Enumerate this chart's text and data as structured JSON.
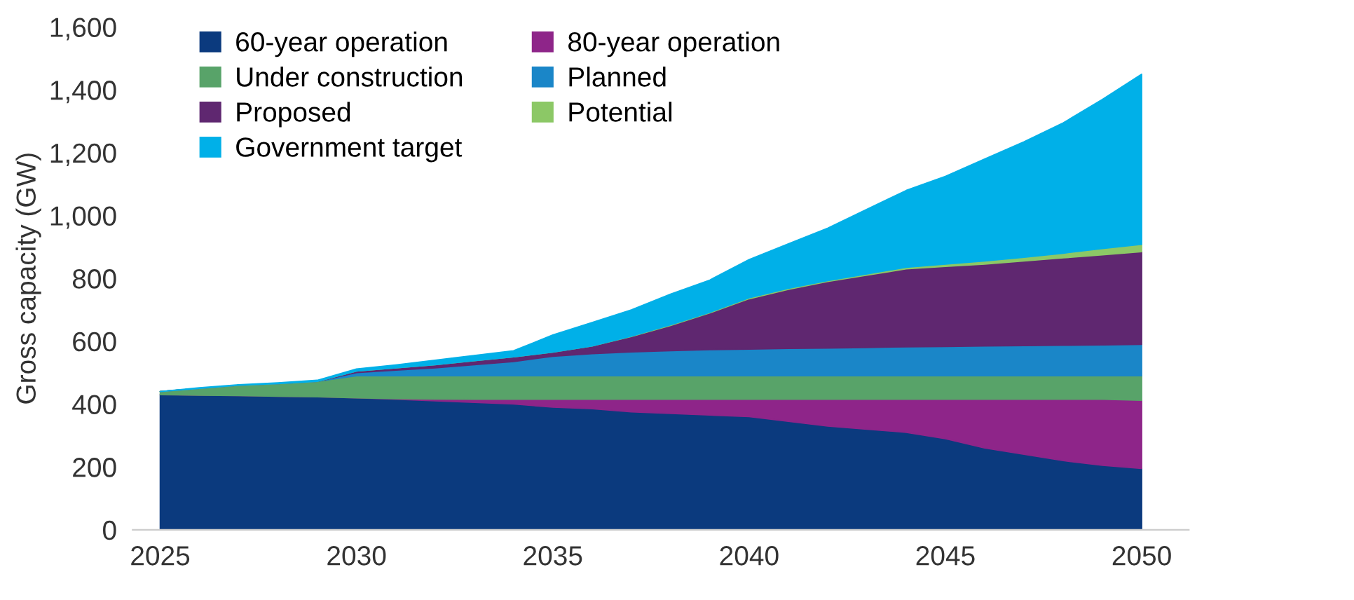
{
  "chart_data": {
    "type": "area",
    "stacked": true,
    "ylabel": "Gross capacity (GW)",
    "x": [
      2025,
      2026,
      2027,
      2028,
      2029,
      2030,
      2031,
      2032,
      2033,
      2034,
      2035,
      2036,
      2037,
      2038,
      2039,
      2040,
      2041,
      2042,
      2043,
      2044,
      2045,
      2046,
      2047,
      2048,
      2049,
      2050
    ],
    "series": [
      {
        "name": "60-year operation",
        "color": "#0b3a7e",
        "values": [
          430,
          428,
          427,
          425,
          423,
          420,
          415,
          410,
          405,
          400,
          390,
          385,
          375,
          370,
          365,
          360,
          345,
          330,
          320,
          310,
          290,
          260,
          240,
          220,
          205,
          195
        ]
      },
      {
        "name": "80-year operation",
        "color": "#8e2589",
        "values": [
          0,
          0,
          0,
          0,
          0,
          0,
          2,
          6,
          10,
          15,
          25,
          30,
          40,
          45,
          50,
          55,
          70,
          85,
          95,
          105,
          125,
          155,
          175,
          195,
          210,
          217
        ]
      },
      {
        "name": "Under construction",
        "color": "#58a369",
        "values": [
          10,
          22,
          33,
          40,
          49,
          70,
          73,
          74,
          75,
          75,
          75,
          75,
          75,
          75,
          75,
          75,
          75,
          75,
          75,
          75,
          75,
          75,
          75,
          75,
          75,
          78
        ]
      },
      {
        "name": "Planned",
        "color": "#1a86c8",
        "values": [
          0,
          0,
          0,
          0,
          0,
          10,
          18,
          25,
          35,
          45,
          62,
          70,
          76,
          80,
          83,
          85,
          87,
          88,
          90,
          92,
          93,
          95,
          96,
          97,
          98,
          100
        ]
      },
      {
        "name": "Proposed",
        "color": "#5f2770",
        "values": [
          0,
          0,
          0,
          0,
          0,
          5,
          7,
          10,
          13,
          15,
          13,
          25,
          49,
          80,
          117,
          160,
          188,
          212,
          230,
          248,
          255,
          260,
          269,
          278,
          287,
          295
        ]
      },
      {
        "name": "Potential",
        "color": "#8cc866",
        "values": [
          0,
          0,
          0,
          0,
          0,
          0,
          0,
          0,
          0,
          0,
          0,
          0,
          1,
          2,
          2,
          3,
          3,
          3,
          4,
          5,
          7,
          10,
          12,
          15,
          20,
          23
        ]
      },
      {
        "name": "Government target",
        "color": "#00b0e8",
        "values": [
          0,
          2,
          2,
          3,
          4,
          7,
          10,
          15,
          17,
          20,
          55,
          75,
          84,
          98,
          103,
          122,
          142,
          167,
          206,
          245,
          280,
          325,
          368,
          415,
          475,
          542
        ]
      }
    ],
    "xlim": [
      2024.3,
      2051.2
    ],
    "xticks": [
      2025,
      2030,
      2035,
      2040,
      2045,
      2050
    ],
    "ylim": [
      0,
      1600
    ],
    "yticks": [
      0,
      200,
      400,
      600,
      800,
      {
        "value": 1000,
        "label": "1,000"
      },
      {
        "value": 1200,
        "label": "1,200"
      },
      {
        "value": 1400,
        "label": "1,400"
      },
      {
        "value": 1600,
        "label": "1,600"
      }
    ],
    "grid": false,
    "legend": "top left"
  }
}
